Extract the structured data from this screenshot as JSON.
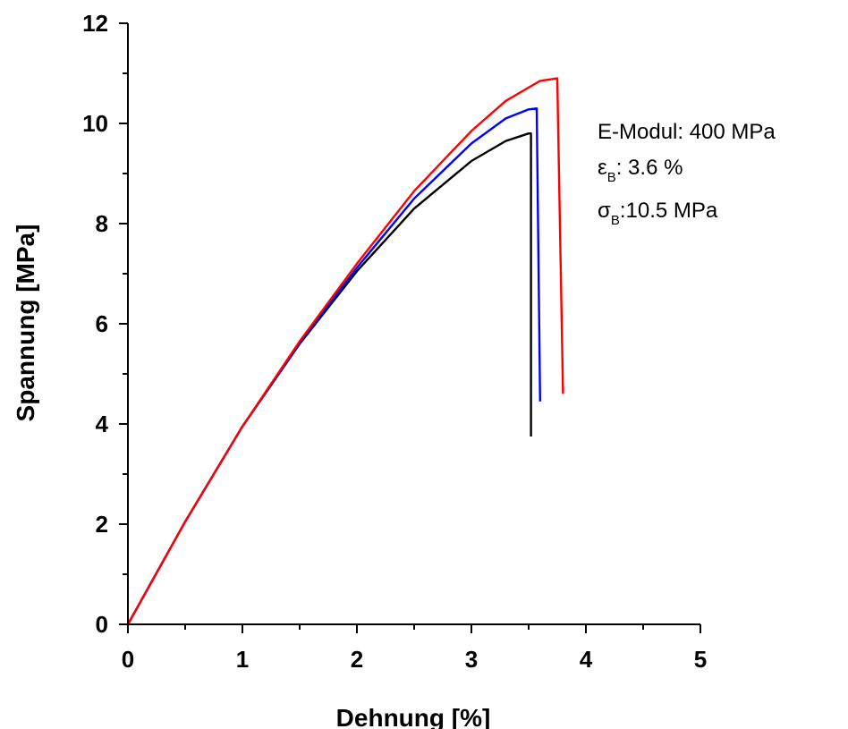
{
  "chart_data": {
    "type": "line",
    "xlabel": "Dehnung [%]",
    "ylabel": "Spannung [MPa]",
    "xlim": [
      0,
      5
    ],
    "ylim": [
      0,
      12
    ],
    "xticks": [
      "0",
      "1",
      "2",
      "3",
      "4",
      "5"
    ],
    "yticks": [
      "0",
      "2",
      "4",
      "6",
      "8",
      "10",
      "12"
    ],
    "grid": false,
    "series": [
      {
        "color": "#000000",
        "x": [
          0,
          0.5,
          1.0,
          1.5,
          2.0,
          2.5,
          3.0,
          3.3,
          3.5,
          3.52,
          3.52
        ],
        "y": [
          0,
          2.05,
          3.95,
          5.6,
          7.05,
          8.3,
          9.25,
          9.65,
          9.8,
          9.8,
          3.75
        ]
      },
      {
        "color": "#0000ff",
        "x": [
          0,
          0.5,
          1.0,
          1.5,
          2.0,
          2.5,
          3.0,
          3.3,
          3.5,
          3.57,
          3.6
        ],
        "y": [
          0,
          2.05,
          3.95,
          5.62,
          7.12,
          8.5,
          9.6,
          10.1,
          10.28,
          10.3,
          4.45
        ]
      },
      {
        "color": "#ff0000",
        "x": [
          0,
          0.5,
          1.0,
          1.5,
          2.0,
          2.5,
          3.0,
          3.3,
          3.6,
          3.75,
          3.8
        ],
        "y": [
          0,
          2.05,
          3.95,
          5.65,
          7.2,
          8.65,
          9.85,
          10.45,
          10.85,
          10.9,
          4.6
        ]
      }
    ],
    "annotations": {
      "line1": "E-Modul: 400 MPa",
      "line2_symbol": "ε",
      "line2_sub": "B",
      "line2_text": ": 3.6 %",
      "line3_symbol": "σ",
      "line3_sub": "B",
      "line3_text": ":10.5 MPa"
    }
  }
}
